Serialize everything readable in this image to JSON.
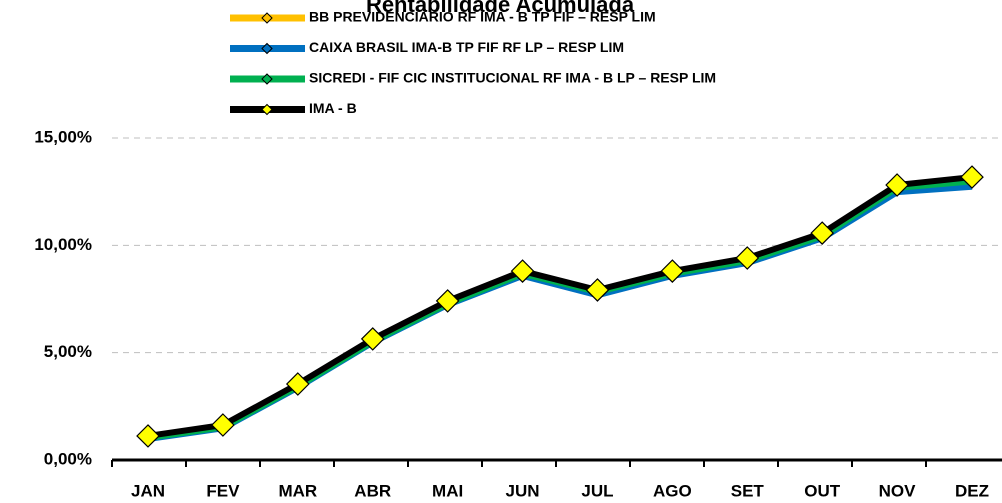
{
  "chart_data": {
    "type": "line",
    "title": "Rentabilidade Acumulada",
    "categories": [
      "JAN",
      "FEV",
      "MAR",
      "ABR",
      "MAI",
      "JUN",
      "JUL",
      "AGO",
      "SET",
      "OUT",
      "NOV",
      "DEZ"
    ],
    "series": [
      {
        "name": "BB PREVIDENCIÁRIO RF IMA - B TP FIF – RESP LIM",
        "color": "#FFC000",
        "values": [
          1.05,
          1.55,
          3.45,
          5.55,
          7.3,
          8.7,
          7.8,
          8.7,
          9.3,
          10.45,
          12.65,
          12.95
        ]
      },
      {
        "name": "CAIXA BRASIL IMA-B TP FIF RF LP – RESP LIM",
        "color": "#0070C0",
        "values": [
          1.0,
          1.5,
          3.4,
          5.5,
          7.25,
          8.6,
          7.7,
          8.6,
          9.2,
          10.35,
          12.5,
          12.75
        ]
      },
      {
        "name": "SICREDI - FIF CIC INSTITUCIONAL RF IMA - B LP – RESP LIM",
        "color": "#00B050",
        "values": [
          1.05,
          1.55,
          3.45,
          5.55,
          7.3,
          8.7,
          7.85,
          8.7,
          9.3,
          10.45,
          12.7,
          13.0
        ]
      },
      {
        "name": "IMA - B",
        "color": "#000000",
        "values": [
          1.12,
          1.63,
          3.54,
          5.64,
          7.41,
          8.8,
          7.92,
          8.8,
          9.41,
          10.57,
          12.81,
          13.18
        ]
      }
    ],
    "ylim": [
      0,
      15
    ],
    "yticks": [
      {
        "value": 0,
        "label": "0,00%"
      },
      {
        "value": 5,
        "label": "5,00%"
      },
      {
        "value": 10,
        "label": "10,00%"
      },
      {
        "value": 15,
        "label": "15,00%"
      }
    ],
    "grid": true
  }
}
